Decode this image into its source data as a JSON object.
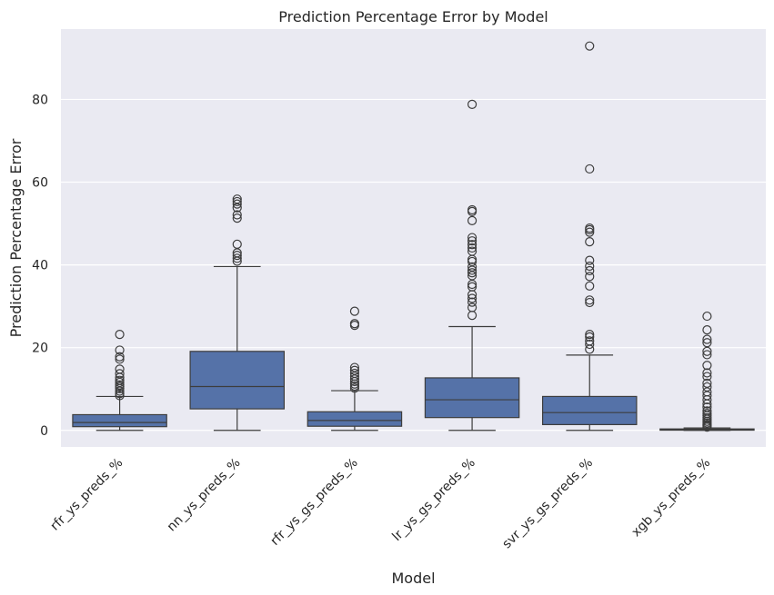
{
  "chart_data": {
    "type": "box",
    "title": "Prediction Percentage Error by Model",
    "xlabel": "Model",
    "ylabel": "Prediction Percentage Error",
    "ylim": [
      -4,
      97
    ],
    "yticks": [
      0,
      20,
      40,
      60,
      80
    ],
    "grid": true,
    "box_color": "#5572a8",
    "plot_background": "#eaeaf2",
    "categories": [
      "rfr_ys_preds_%",
      "nn_ys_preds_%",
      "rfr_ys_gs_preds_%",
      "lr_ys_gs_preds_%",
      "svr_ys_gs_preds_%",
      "xgb_ys_preds_%"
    ],
    "boxes": [
      {
        "name": "rfr_ys_preds_%",
        "whisker_low": 0,
        "q1": 0.9,
        "median": 1.9,
        "q3": 3.8,
        "whisker_high": 8.2,
        "outliers": [
          8.4,
          8.9,
          9.5,
          10.1,
          10.6,
          11.0,
          11.6,
          12.1,
          12.8,
          13.7,
          14.8,
          17.2,
          17.8,
          19.4,
          23.2
        ]
      },
      {
        "name": "nn_ys_preds_%",
        "whisker_low": 0,
        "q1": 5.2,
        "median": 10.6,
        "q3": 19.1,
        "whisker_high": 39.6,
        "outliers": [
          40.9,
          41.6,
          42.3,
          42.9,
          45.0,
          51.3,
          52.1,
          53.8,
          54.7,
          55.3,
          55.9
        ]
      },
      {
        "name": "rfr_ys_gs_preds_%",
        "whisker_low": 0,
        "q1": 1.0,
        "median": 2.4,
        "q3": 4.5,
        "whisker_high": 9.6,
        "outliers": [
          10.2,
          10.7,
          11.2,
          11.8,
          12.4,
          13.1,
          13.8,
          14.5,
          15.2,
          25.4,
          25.8,
          28.8
        ]
      },
      {
        "name": "lr_ys_gs_preds_%",
        "whisker_low": 0,
        "q1": 3.1,
        "median": 7.4,
        "q3": 12.7,
        "whisker_high": 25.1,
        "outliers": [
          27.8,
          29.7,
          31.0,
          31.9,
          32.8,
          34.7,
          35.3,
          37.4,
          38.1,
          38.7,
          39.5,
          40.8,
          41.3,
          43.3,
          44.1,
          44.9,
          45.8,
          46.6,
          50.7,
          52.9,
          53.3,
          78.8
        ]
      },
      {
        "name": "svr_ys_gs_preds_%",
        "whisker_low": 0,
        "q1": 1.4,
        "median": 4.3,
        "q3": 8.2,
        "whisker_high": 18.2,
        "outliers": [
          19.6,
          20.8,
          21.6,
          22.6,
          23.2,
          30.9,
          31.5,
          34.9,
          37.2,
          38.6,
          39.7,
          41.1,
          45.6,
          47.9,
          48.5,
          48.9,
          63.2,
          92.9
        ]
      },
      {
        "name": "xgb_ys_preds_%",
        "whisker_low": 0,
        "q1": 0.05,
        "median": 0.15,
        "q3": 0.35,
        "whisker_high": 0.6,
        "outliers": [
          0.8,
          1.1,
          1.4,
          1.8,
          2.2,
          2.7,
          3.1,
          3.6,
          4.1,
          4.7,
          5.6,
          6.4,
          7.4,
          8.4,
          9.3,
          10.5,
          11.4,
          13.0,
          13.9,
          15.7,
          18.3,
          19.1,
          21.2,
          22.0,
          24.3,
          27.6
        ]
      }
    ]
  }
}
